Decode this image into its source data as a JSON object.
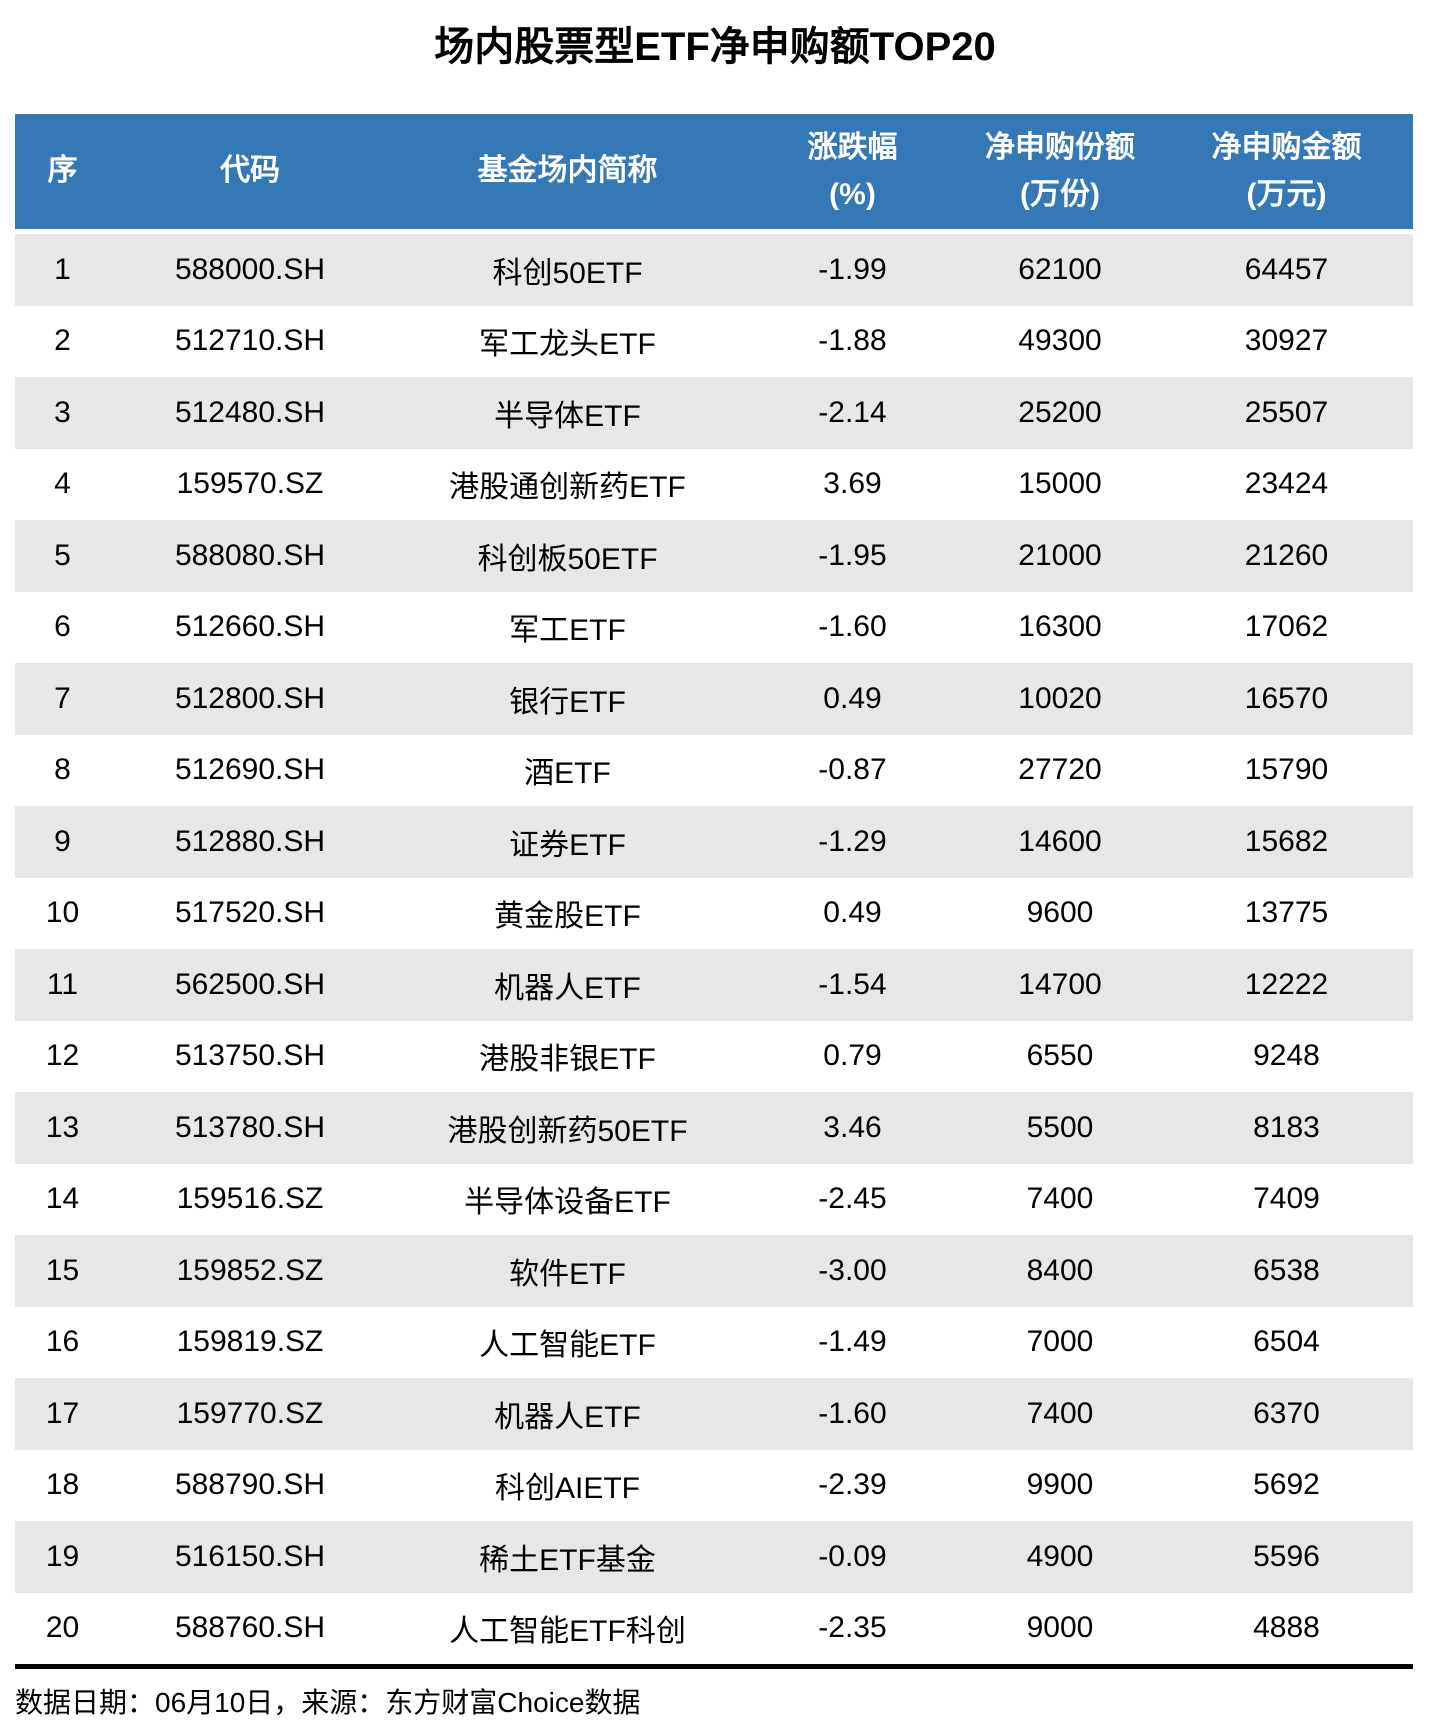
{
  "chart_data": {
    "type": "table",
    "title": "场内股票型ETF净申购额TOP20",
    "columns": [
      {
        "key": "rank",
        "label": "序",
        "sub": ""
      },
      {
        "key": "code",
        "label": "代码",
        "sub": ""
      },
      {
        "key": "name",
        "label": "基金场内简称",
        "sub": ""
      },
      {
        "key": "change-pct",
        "label": "涨跌幅",
        "sub": "(%)"
      },
      {
        "key": "net-shares",
        "label": "净申购份额",
        "sub": "(万份)"
      },
      {
        "key": "net-amount",
        "label": "净申购金额",
        "sub": "(万元)"
      }
    ],
    "rows": [
      [
        "1",
        "588000.SH",
        "科创50ETF",
        "-1.99",
        "62100",
        "64457"
      ],
      [
        "2",
        "512710.SH",
        "军工龙头ETF",
        "-1.88",
        "49300",
        "30927"
      ],
      [
        "3",
        "512480.SH",
        "半导体ETF",
        "-2.14",
        "25200",
        "25507"
      ],
      [
        "4",
        "159570.SZ",
        "港股通创新药ETF",
        "3.69",
        "15000",
        "23424"
      ],
      [
        "5",
        "588080.SH",
        "科创板50ETF",
        "-1.95",
        "21000",
        "21260"
      ],
      [
        "6",
        "512660.SH",
        "军工ETF",
        "-1.60",
        "16300",
        "17062"
      ],
      [
        "7",
        "512800.SH",
        "银行ETF",
        "0.49",
        "10020",
        "16570"
      ],
      [
        "8",
        "512690.SH",
        "酒ETF",
        "-0.87",
        "27720",
        "15790"
      ],
      [
        "9",
        "512880.SH",
        "证券ETF",
        "-1.29",
        "14600",
        "15682"
      ],
      [
        "10",
        "517520.SH",
        "黄金股ETF",
        "0.49",
        "9600",
        "13775"
      ],
      [
        "11",
        "562500.SH",
        "机器人ETF",
        "-1.54",
        "14700",
        "12222"
      ],
      [
        "12",
        "513750.SH",
        "港股非银ETF",
        "0.79",
        "6550",
        "9248"
      ],
      [
        "13",
        "513780.SH",
        "港股创新药50ETF",
        "3.46",
        "5500",
        "8183"
      ],
      [
        "14",
        "159516.SZ",
        "半导体设备ETF",
        "-2.45",
        "7400",
        "7409"
      ],
      [
        "15",
        "159852.SZ",
        "软件ETF",
        "-3.00",
        "8400",
        "6538"
      ],
      [
        "16",
        "159819.SZ",
        "人工智能ETF",
        "-1.49",
        "7000",
        "6504"
      ],
      [
        "17",
        "159770.SZ",
        "机器人ETF",
        "-1.60",
        "7400",
        "6370"
      ],
      [
        "18",
        "588790.SH",
        "科创AIETF",
        "-2.39",
        "9900",
        "5692"
      ],
      [
        "19",
        "516150.SH",
        "稀土ETF基金",
        "-0.09",
        "4900",
        "5596"
      ],
      [
        "20",
        "588760.SH",
        "人工智能ETF科创",
        "-2.35",
        "9000",
        "4888"
      ]
    ],
    "layout": {
      "striped": true,
      "stripe_color": "#E7E7E7",
      "header_color": "#3478B6"
    }
  },
  "footer": {
    "text": "数据日期：06月10日，来源：东方财富Choice数据"
  },
  "colors": {
    "header_bg": "#3478B6",
    "header_text": "#FFFFFF",
    "row_alt_bg": "#E7E7E7",
    "rule": "#000000"
  }
}
